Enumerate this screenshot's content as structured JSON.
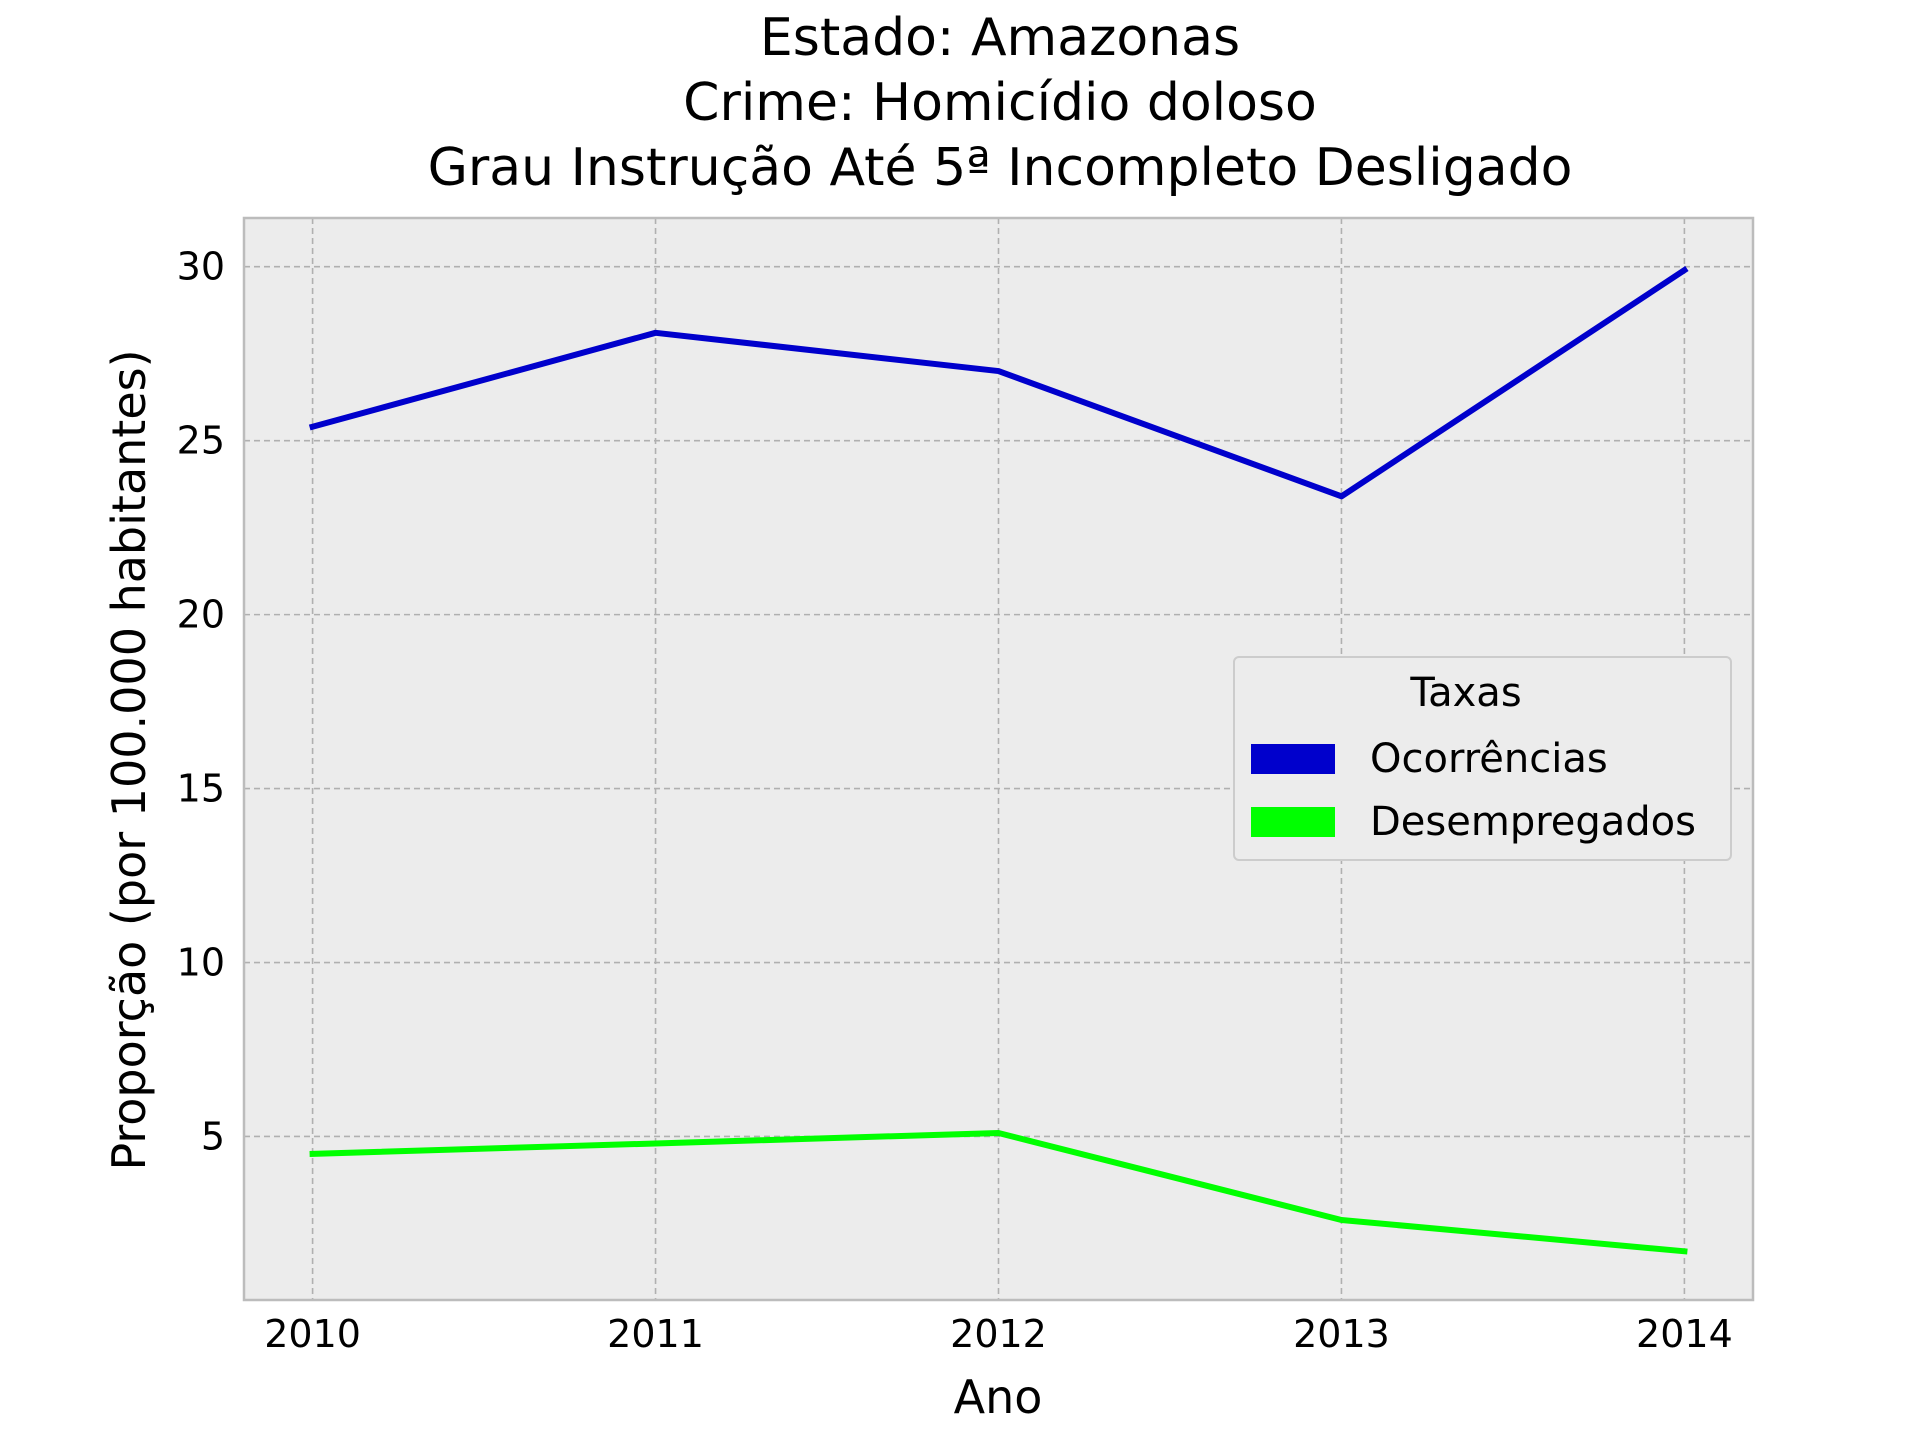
{
  "chart_data": {
    "type": "line",
    "title_lines": [
      "Estado: Amazonas",
      "Crime: Homicídio doloso",
      "Grau Instrução  Até 5ª Incompleto   Desligado"
    ],
    "xlabel": "Ano",
    "ylabel": "Proporção (por 100.000 habitantes)",
    "x": [
      2010,
      2011,
      2012,
      2013,
      2014
    ],
    "x_tick_labels": [
      "2010",
      "2011",
      "2012",
      "2013",
      "2014"
    ],
    "y_ticks": [
      5,
      10,
      15,
      20,
      25,
      30
    ],
    "y_tick_labels": [
      "5",
      "10",
      "15",
      "20",
      "25",
      "30"
    ],
    "xlim": [
      2009.8,
      2014.2
    ],
    "ylim": [
      0.3,
      31.4
    ],
    "grid": true,
    "legend": {
      "title": "Taxas",
      "placement": "center-right"
    },
    "series": [
      {
        "name": "Ocorrências",
        "color": "#0000cc",
        "values": [
          25.4,
          28.1,
          27.0,
          23.4,
          29.9
        ]
      },
      {
        "name": "Desempregados",
        "color": "#00ff00",
        "values": [
          4.5,
          4.8,
          5.1,
          2.6,
          1.7
        ]
      }
    ],
    "colors": {
      "plot_background": "#ececec",
      "grid": "#b0b0b0",
      "spine": "#bcbcbc"
    }
  }
}
